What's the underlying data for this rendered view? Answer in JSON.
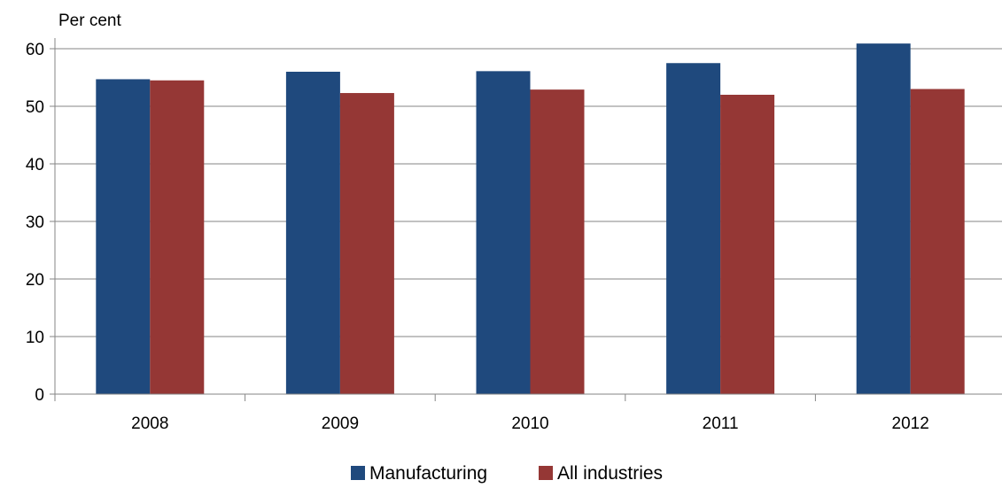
{
  "chart_data": {
    "type": "bar",
    "ylabel": "Per cent",
    "categories": [
      "2008",
      "2009",
      "2010",
      "2011",
      "2012"
    ],
    "ylim": [
      0,
      60
    ],
    "yticks": [
      0,
      10,
      20,
      30,
      40,
      50,
      60
    ],
    "grid": true,
    "legend": "bottom",
    "series": [
      {
        "name": "Manufacturing",
        "color": "#1F497D",
        "values": [
          54.7,
          56.0,
          56.1,
          57.5,
          60.9
        ]
      },
      {
        "name": "All industries",
        "color": "#953735",
        "values": [
          54.5,
          52.3,
          52.9,
          52.0,
          53.0
        ]
      }
    ]
  }
}
